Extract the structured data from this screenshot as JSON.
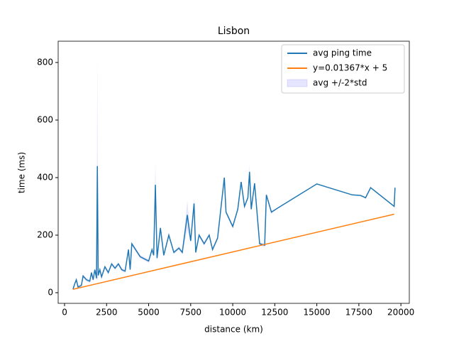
{
  "chart_data": {
    "type": "line",
    "title": "Lisbon",
    "xlabel": "distance (km)",
    "ylabel": "time (ms)",
    "xlim": [
      -380,
      20500
    ],
    "ylim": [
      -37,
      874
    ],
    "xticks": [
      0,
      2500,
      5000,
      7500,
      10000,
      12500,
      15000,
      17500,
      20000
    ],
    "yticks": [
      0,
      200,
      400,
      600,
      800
    ],
    "legend": "upper right",
    "x": [
      500,
      600,
      700,
      800,
      1000,
      1100,
      1300,
      1500,
      1600,
      1700,
      1800,
      1900,
      1950,
      2000,
      2100,
      2200,
      2400,
      2600,
      2800,
      3000,
      3200,
      3400,
      3600,
      3800,
      3900,
      4000,
      4500,
      5000,
      5200,
      5300,
      5400,
      5500,
      5700,
      5900,
      6200,
      6500,
      6800,
      7000,
      7300,
      7500,
      7700,
      7800,
      8000,
      8300,
      8600,
      8800,
      9100,
      9500,
      9600,
      10000,
      10300,
      10500,
      10700,
      10900,
      11000,
      11100,
      11300,
      11600,
      11900,
      12000,
      12300,
      12700,
      15000,
      17100,
      17600,
      17900,
      18200,
      19600,
      19650
    ],
    "series": [
      {
        "name": "avg ping time",
        "color": "#1f77b4",
        "values": [
          12,
          30,
          45,
          20,
          25,
          58,
          45,
          40,
          70,
          45,
          80,
          50,
          440,
          60,
          80,
          55,
          90,
          70,
          100,
          85,
          100,
          80,
          75,
          150,
          80,
          170,
          125,
          110,
          150,
          130,
          375,
          120,
          225,
          130,
          200,
          140,
          155,
          140,
          270,
          180,
          310,
          140,
          200,
          170,
          200,
          150,
          190,
          400,
          280,
          230,
          290,
          385,
          300,
          330,
          420,
          290,
          380,
          170,
          165,
          340,
          280,
          295,
          378,
          340,
          338,
          330,
          365,
          300,
          365
        ]
      },
      {
        "name": "y=0.01367*x + 5",
        "color": "#ff7f0e",
        "x": [
          500,
          19600
        ],
        "values": [
          11.8,
          272.9
        ]
      },
      {
        "name": "avg +/-2*std",
        "color": "#0000ff",
        "opacity": 0.1,
        "kind": "band",
        "errors": [
          6,
          6,
          6,
          6,
          6,
          6,
          6,
          6,
          6,
          6,
          6,
          6,
          395,
          6,
          6,
          6,
          6,
          6,
          6,
          6,
          6,
          6,
          6,
          6,
          6,
          6,
          6,
          6,
          6,
          6,
          80,
          6,
          6,
          6,
          6,
          6,
          6,
          6,
          50,
          6,
          20,
          6,
          6,
          6,
          6,
          6,
          6,
          6,
          6,
          6,
          6,
          6,
          6,
          6,
          25,
          6,
          6,
          6,
          6,
          6,
          6,
          0,
          0,
          0,
          0,
          0,
          0,
          0,
          0
        ]
      }
    ]
  }
}
